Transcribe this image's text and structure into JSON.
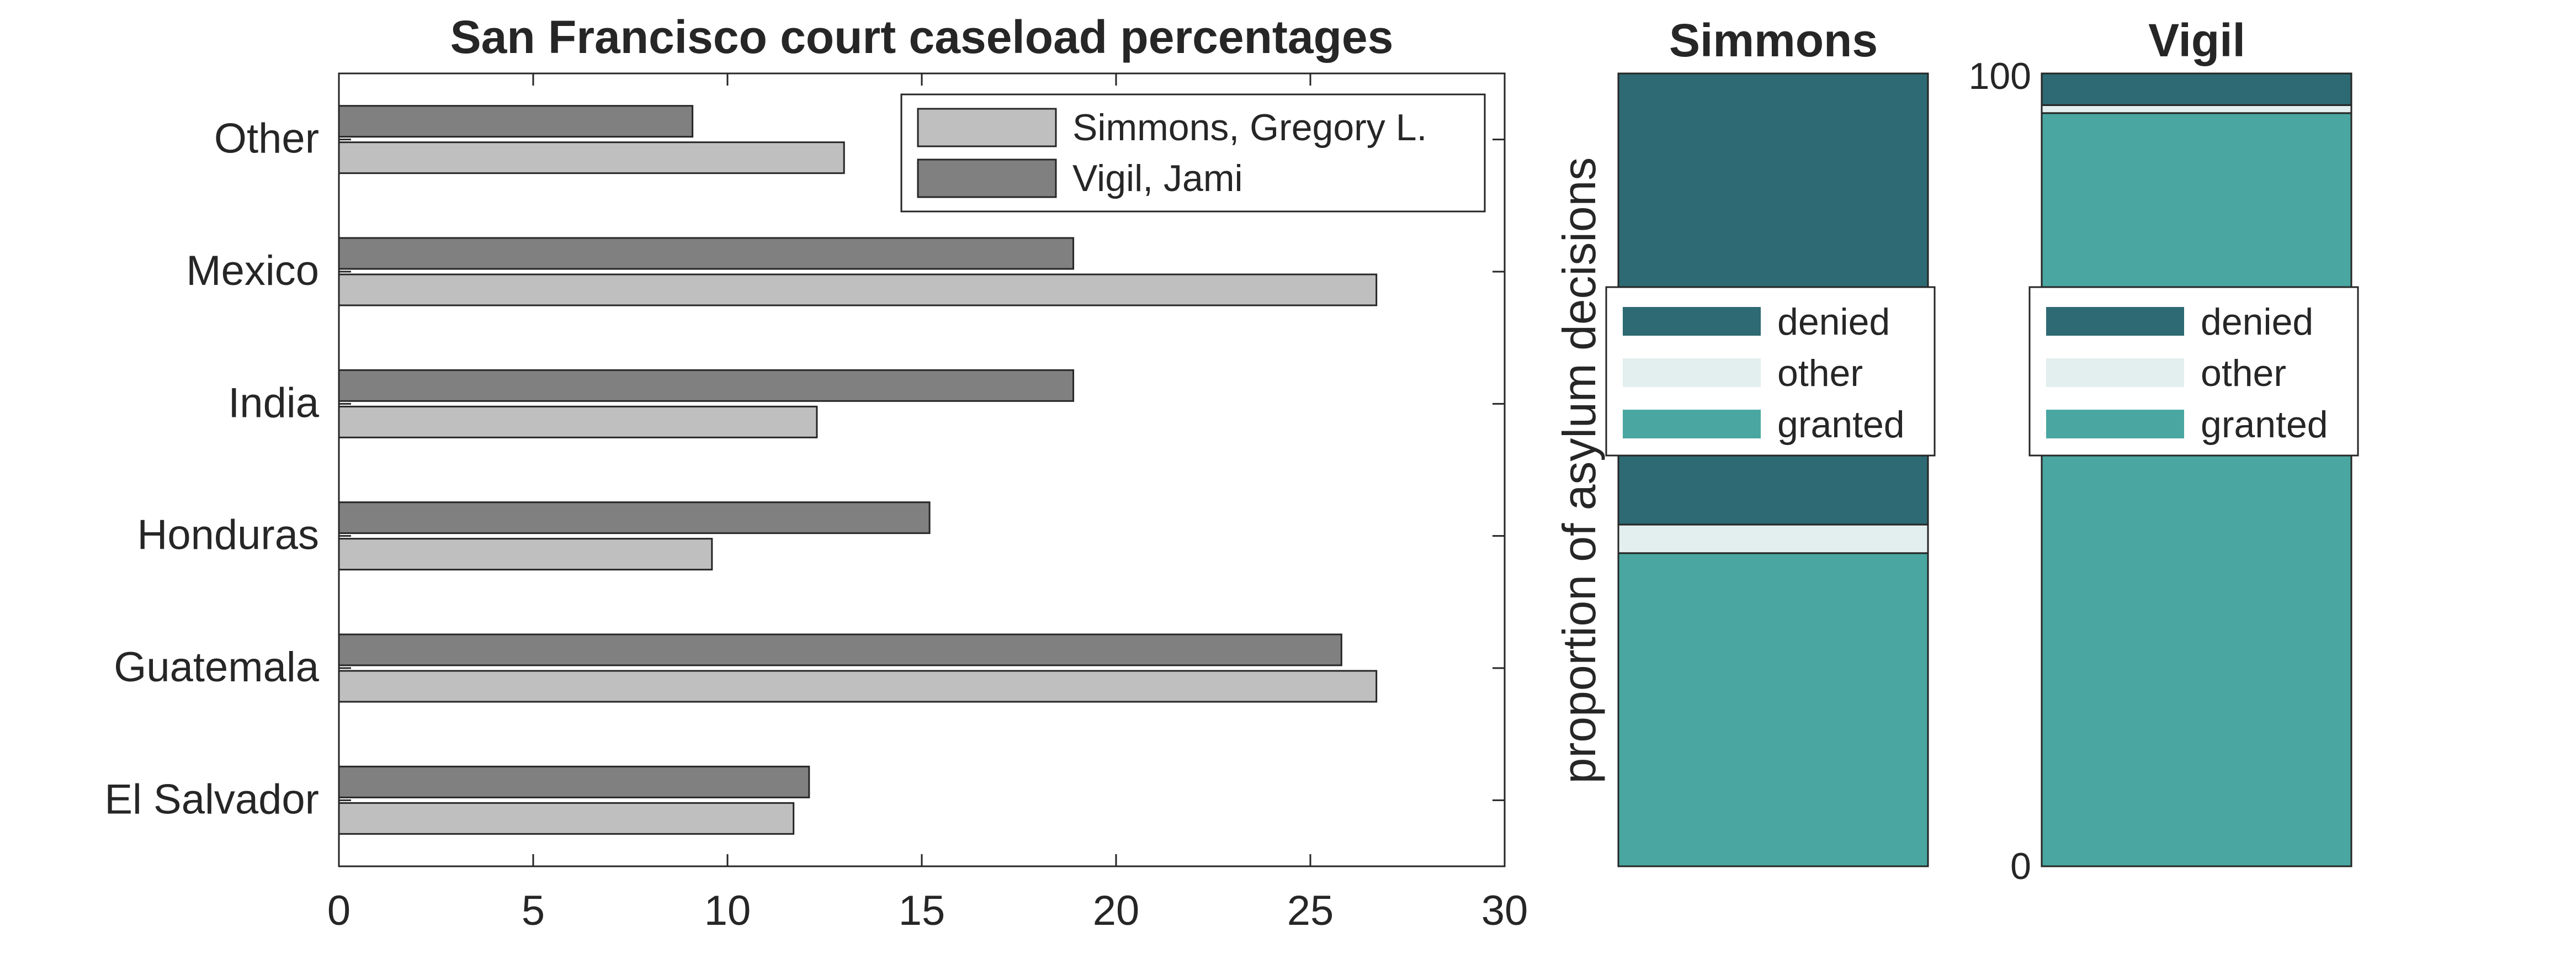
{
  "chart_data": [
    {
      "type": "bar",
      "orientation": "horizontal",
      "title": "San Francisco court caseload percentages",
      "categories": [
        "El Salvador",
        "Guatemala",
        "Honduras",
        "India",
        "Mexico",
        "Other"
      ],
      "series": [
        {
          "name": "Simmons, Gregory L.",
          "values": [
            11.7,
            26.7,
            9.6,
            12.3,
            26.7,
            13.0
          ],
          "color": "#bfbfbf"
        },
        {
          "name": "Vigil, Jami",
          "values": [
            12.1,
            25.8,
            15.2,
            18.9,
            18.9,
            9.1
          ],
          "color": "#808080"
        }
      ],
      "xlim": [
        0,
        30
      ],
      "xticks": [
        "0",
        "5",
        "10",
        "15",
        "20",
        "25",
        "30"
      ],
      "legend_position": "top-right",
      "grid": false
    },
    {
      "type": "bar",
      "stacked": true,
      "title": "Simmons",
      "ylabel": "proportion of asylum decisions",
      "ylim": [
        0,
        100
      ],
      "segments": [
        {
          "name": "granted",
          "value": 39.5,
          "color": "#4aa6a0"
        },
        {
          "name": "other",
          "value": 3.6,
          "color": "#e3eeee"
        },
        {
          "name": "denied",
          "value": 56.9,
          "color": "#2e6a73"
        }
      ],
      "legend": [
        "denied",
        "other",
        "granted"
      ],
      "legend_position": "middle"
    },
    {
      "type": "bar",
      "stacked": true,
      "title": "Vigil",
      "ylim": [
        0,
        100
      ],
      "yticks": [
        "0",
        "100"
      ],
      "segments": [
        {
          "name": "granted",
          "value": 95.0,
          "color": "#4aa6a0"
        },
        {
          "name": "other",
          "value": 1.0,
          "color": "#e3eeee"
        },
        {
          "name": "denied",
          "value": 4.0,
          "color": "#2e6a73"
        }
      ],
      "legend": [
        "denied",
        "other",
        "granted"
      ],
      "legend_position": "middle"
    }
  ]
}
